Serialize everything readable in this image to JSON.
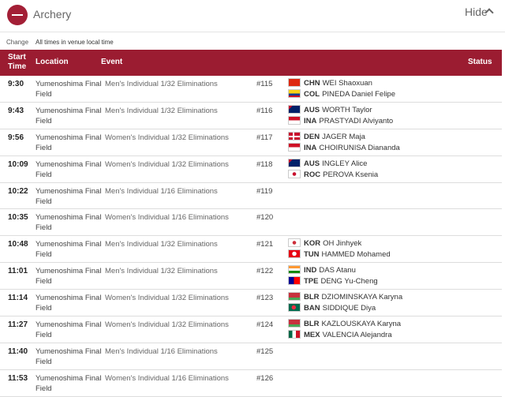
{
  "header": {
    "title": "Archery",
    "toggle": "Hide"
  },
  "subheader": {
    "change": "Change",
    "note": "All times in venue local time"
  },
  "table": {
    "columns": [
      "Start Time",
      "Location",
      "Event",
      "Status"
    ],
    "rows": [
      {
        "time": "9:30",
        "location": "Yumenoshima Final Field",
        "event": "Men's Individual 1/32 Eliminations",
        "number": "#115",
        "athletes": [
          {
            "code": "CHN",
            "name": "WEI Shaoxuan"
          },
          {
            "code": "COL",
            "name": "PINEDA Daniel Felipe"
          }
        ]
      },
      {
        "time": "9:43",
        "location": "Yumenoshima Final Field",
        "event": "Men's Individual 1/32 Eliminations",
        "number": "#116",
        "athletes": [
          {
            "code": "AUS",
            "name": "WORTH Taylor"
          },
          {
            "code": "INA",
            "name": "PRASTYADI Alviyanto"
          }
        ]
      },
      {
        "time": "9:56",
        "location": "Yumenoshima Final Field",
        "event": "Women's Individual 1/32 Eliminations",
        "number": "#117",
        "athletes": [
          {
            "code": "DEN",
            "name": "JAGER Maja"
          },
          {
            "code": "INA",
            "name": "CHOIRUNISA Diananda"
          }
        ]
      },
      {
        "time": "10:09",
        "location": "Yumenoshima Final Field",
        "event": "Women's Individual 1/32 Eliminations",
        "number": "#118",
        "athletes": [
          {
            "code": "AUS",
            "name": "INGLEY Alice"
          },
          {
            "code": "ROC",
            "name": "PEROVA Ksenia"
          }
        ]
      },
      {
        "time": "10:22",
        "location": "Yumenoshima Final Field",
        "event": "Men's Individual 1/16 Eliminations",
        "number": "#119",
        "athletes": []
      },
      {
        "time": "10:35",
        "location": "Yumenoshima Final Field",
        "event": "Women's Individual 1/16 Eliminations",
        "number": "#120",
        "athletes": []
      },
      {
        "time": "10:48",
        "location": "Yumenoshima Final Field",
        "event": "Men's Individual 1/32 Eliminations",
        "number": "#121",
        "athletes": [
          {
            "code": "KOR",
            "name": "OH Jinhyek"
          },
          {
            "code": "TUN",
            "name": "HAMMED Mohamed"
          }
        ]
      },
      {
        "time": "11:01",
        "location": "Yumenoshima Final Field",
        "event": "Men's Individual 1/32 Eliminations",
        "number": "#122",
        "athletes": [
          {
            "code": "IND",
            "name": "DAS Atanu"
          },
          {
            "code": "TPE",
            "name": "DENG Yu-Cheng"
          }
        ]
      },
      {
        "time": "11:14",
        "location": "Yumenoshima Final Field",
        "event": "Women's Individual 1/32 Eliminations",
        "number": "#123",
        "athletes": [
          {
            "code": "BLR",
            "name": "DZIOMINSKAYA Karyna"
          },
          {
            "code": "BAN",
            "name": "SIDDIQUE Diya"
          }
        ]
      },
      {
        "time": "11:27",
        "location": "Yumenoshima Final Field",
        "event": "Women's Individual 1/32 Eliminations",
        "number": "#124",
        "athletes": [
          {
            "code": "BLR",
            "name": "KAZLOUSKAYA Karyna"
          },
          {
            "code": "MEX",
            "name": "VALENCIA Alejandra"
          }
        ]
      },
      {
        "time": "11:40",
        "location": "Yumenoshima Final Field",
        "event": "Men's Individual 1/16 Eliminations",
        "number": "#125",
        "athletes": []
      },
      {
        "time": "11:53",
        "location": "Yumenoshima Final Field",
        "event": "Women's Individual 1/16 Eliminations",
        "number": "#126",
        "athletes": []
      }
    ]
  }
}
